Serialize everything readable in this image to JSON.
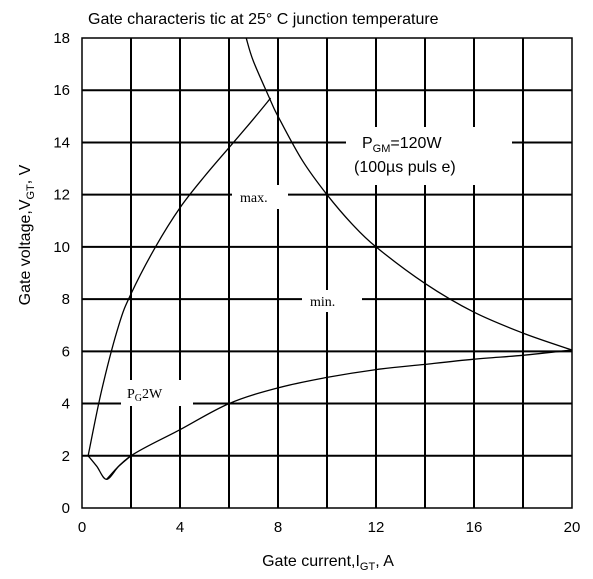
{
  "chart_data": {
    "type": "line",
    "title": "Gate characteris tic at 25° C junction temperature",
    "xlabel": {
      "main": "Gate current,I",
      "sub": "GT",
      "unit": ",  A"
    },
    "ylabel": {
      "main": "Gate voltage,V",
      "sub": "GT",
      "unit": ",  V"
    },
    "xlim": [
      0,
      20
    ],
    "ylim": [
      0,
      18
    ],
    "x_ticks": [
      0,
      4,
      8,
      12,
      16,
      20
    ],
    "y_ticks": [
      0,
      2,
      4,
      6,
      8,
      10,
      12,
      14,
      16,
      18
    ],
    "x_grid_step": 2,
    "y_grid_step": 2,
    "grid": true,
    "series": [
      {
        "name": "max.",
        "points": [
          [
            0.25,
            2.0
          ],
          [
            0.8,
            4.5
          ],
          [
            1.5,
            7.0
          ],
          [
            2.0,
            8.2
          ],
          [
            3.0,
            10.0
          ],
          [
            4.0,
            11.5
          ],
          [
            5.0,
            12.7
          ],
          [
            6.0,
            13.8
          ],
          [
            7.0,
            14.9
          ],
          [
            7.7,
            15.7
          ]
        ]
      },
      {
        "name": "min.",
        "points": [
          [
            1.0,
            1.1
          ],
          [
            2.0,
            2.0
          ],
          [
            4.0,
            3.0
          ],
          [
            6.0,
            4.0
          ],
          [
            8.0,
            4.6
          ],
          [
            10.0,
            5.0
          ],
          [
            12.0,
            5.3
          ],
          [
            14.0,
            5.5
          ],
          [
            16.0,
            5.7
          ],
          [
            18.0,
            5.85
          ],
          [
            20.0,
            6.05
          ]
        ]
      },
      {
        "name": "PGM=120W",
        "points": [
          [
            6.7,
            18.0
          ],
          [
            7.0,
            17.1
          ],
          [
            7.7,
            15.6
          ],
          [
            8.0,
            15.0
          ],
          [
            9.0,
            13.3
          ],
          [
            10.0,
            12.0
          ],
          [
            11.0,
            10.9
          ],
          [
            12.0,
            10.0
          ],
          [
            14.0,
            8.6
          ],
          [
            16.0,
            7.5
          ],
          [
            18.0,
            6.7
          ],
          [
            20.0,
            6.05
          ]
        ]
      },
      {
        "name": "PG2W",
        "points": [
          [
            0.25,
            2.0
          ],
          [
            0.6,
            1.6
          ],
          [
            1.0,
            1.1
          ],
          [
            1.5,
            1.6
          ],
          [
            2.0,
            2.0
          ]
        ]
      }
    ],
    "annotations": {
      "pgm_main": "P",
      "pgm_sub": "GM",
      "pgm_value": "=120W",
      "pgm_pulse": "(100µs  puls e)",
      "max_label": "max.",
      "min_label": "min.",
      "pg_main": "P",
      "pg_sub": "G",
      "pg_value": "2W"
    }
  }
}
